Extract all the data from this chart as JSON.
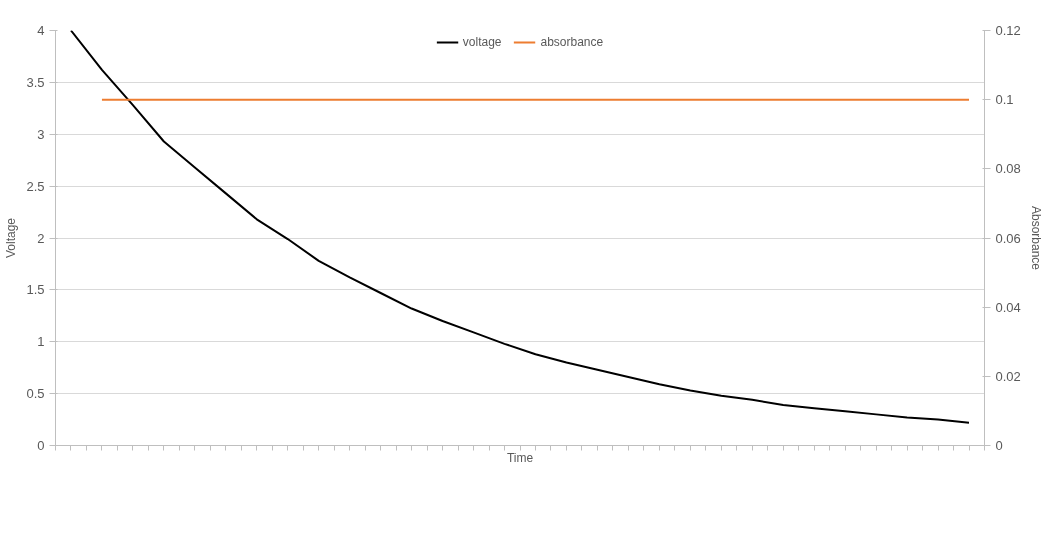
{
  "chart_data": {
    "type": "line",
    "xlabel": "Time",
    "ylabel": "Voltage",
    "y2label": "Absorbance",
    "categories": [
      null,
      null,
      null,
      null,
      null,
      null,
      null,
      null,
      null,
      null,
      null,
      null,
      null,
      null,
      null,
      null,
      null,
      null,
      null,
      null,
      null,
      null,
      null,
      null,
      null,
      null,
      null,
      null,
      null,
      null
    ],
    "series": [
      {
        "name": "voltage",
        "color": "#000000",
        "values": [
          4.0,
          3.62,
          3.28,
          2.93,
          2.68,
          2.43,
          2.18,
          1.99,
          1.78,
          1.62,
          1.47,
          1.32,
          1.2,
          1.09,
          0.98,
          0.88,
          0.8,
          0.73,
          0.66,
          0.59,
          0.53,
          0.48,
          0.44,
          0.39,
          0.36,
          0.33,
          0.3,
          0.27,
          0.25,
          0.22
        ]
      },
      {
        "name": "absorbance",
        "color": "#ed7d31",
        "axis": "y2",
        "values": [
          null,
          0.1,
          0.1,
          0.1,
          0.1,
          0.1,
          0.1,
          0.1,
          0.1,
          0.1,
          0.1,
          0.1,
          0.1,
          0.1,
          0.1,
          0.1,
          0.1,
          0.1,
          0.1,
          0.1,
          0.1,
          0.1,
          0.1,
          0.1,
          0.1,
          0.1,
          0.1,
          0.1,
          0.1,
          0.1
        ]
      }
    ],
    "ylim": [
      0,
      4
    ],
    "yticks": [
      0,
      0.5,
      1,
      1.5,
      2,
      2.5,
      3,
      3.5,
      4
    ],
    "y2lim": [
      0,
      0.12
    ],
    "y2ticks": [
      0,
      0.02,
      0.04,
      0.06,
      0.08,
      0.1,
      0.12
    ],
    "grid": "y",
    "legend": "top",
    "marker": "none",
    "line_style": "solid"
  }
}
